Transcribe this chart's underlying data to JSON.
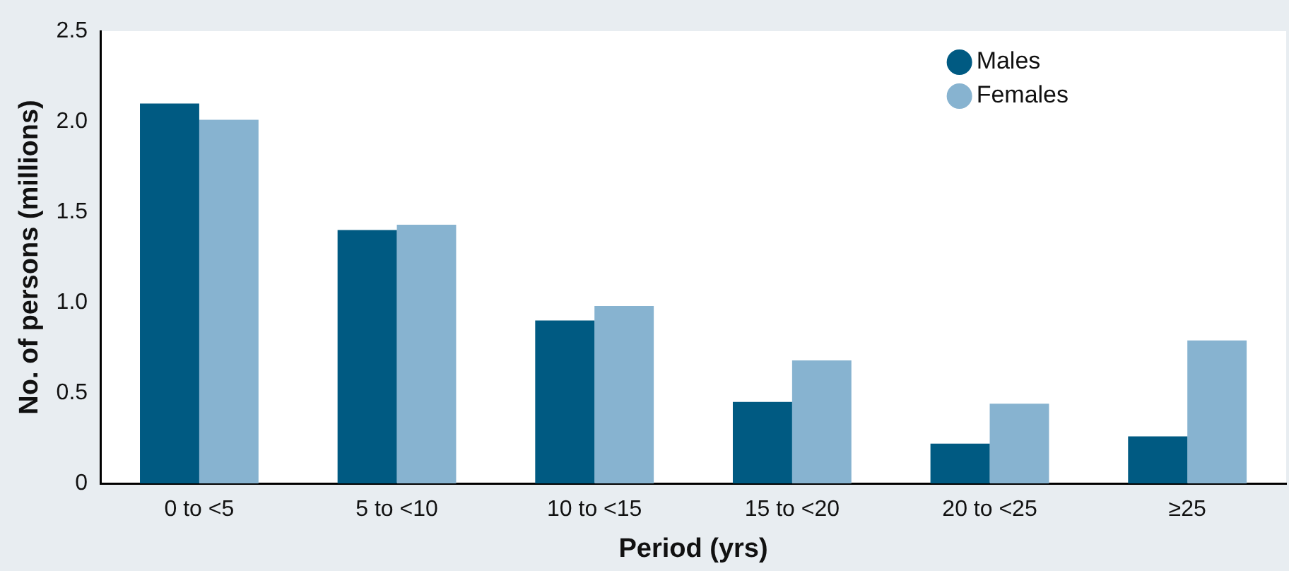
{
  "chart_data": {
    "type": "bar",
    "xlabel": "Period (yrs)",
    "ylabel": "No. of persons (millions)",
    "categories": [
      "0 to <5",
      "5 to <10",
      "10 to <15",
      "15 to <20",
      "20 to <25",
      "≥25"
    ],
    "series": [
      {
        "name": "Males",
        "color": "#005a82",
        "values": [
          2.1,
          1.4,
          0.9,
          0.45,
          0.22,
          0.26
        ]
      },
      {
        "name": "Females",
        "color": "#87b3d0",
        "values": [
          2.01,
          1.43,
          0.98,
          0.68,
          0.44,
          0.79
        ]
      }
    ],
    "ylim": [
      0,
      2.5
    ],
    "yticks": [
      {
        "value": 0,
        "label": "0"
      },
      {
        "value": 0.5,
        "label": "0.5"
      },
      {
        "value": 1,
        "label": "1.0"
      },
      {
        "value": 1.5,
        "label": "1.5"
      },
      {
        "value": 2,
        "label": "2.0"
      },
      {
        "value": 2.5,
        "label": "2.5"
      }
    ],
    "grid": false,
    "legend": "top right",
    "marker": "circle"
  }
}
